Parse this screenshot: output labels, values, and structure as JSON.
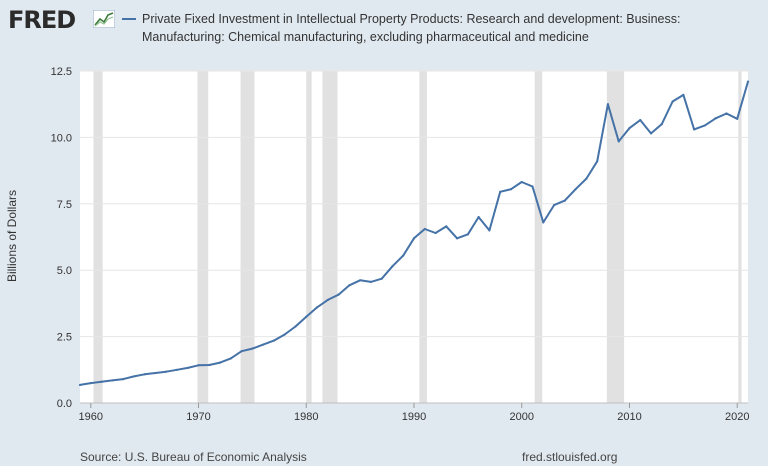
{
  "header": {
    "logo_text": "FRED",
    "legend_label": "Private Fixed Investment in Intellectual Property Products: Research and development: Business: Manufacturing: Chemical manufacturing, excluding pharmaceutical and medicine"
  },
  "footer": {
    "source": "Source: U.S. Bureau of Economic Analysis",
    "site": "fred.stlouisfed.org"
  },
  "colors": {
    "background": "#e1e9f0",
    "plot_background": "#ffffff",
    "series_line": "#4572a7",
    "recession_band": "#e1e1e1"
  },
  "chart_data": {
    "type": "line",
    "title": "",
    "xlabel": "",
    "ylabel": "Billions of Dollars",
    "xlim": [
      1959,
      2021
    ],
    "ylim": [
      0,
      12.5
    ],
    "x_ticks": [
      1960,
      1970,
      1980,
      1990,
      2000,
      2010,
      2020
    ],
    "x_tick_labels": [
      "1960",
      "1970",
      "1980",
      "1990",
      "2000",
      "2010",
      "2020"
    ],
    "y_ticks": [
      0,
      2.5,
      5,
      7.5,
      10,
      12.5
    ],
    "y_tick_labels": [
      "0.0",
      "2.5",
      "5.0",
      "7.5",
      "10.0",
      "12.5"
    ],
    "grid": "horizontal",
    "legend_placement": "top",
    "recessions": [
      [
        1960.25,
        1961.1
      ],
      [
        1969.9,
        1970.9
      ],
      [
        1973.9,
        1975.2
      ],
      [
        1980.0,
        1980.5
      ],
      [
        1981.5,
        1982.9
      ],
      [
        1990.5,
        1991.2
      ],
      [
        2001.2,
        2001.9
      ],
      [
        2007.9,
        2009.5
      ],
      [
        2020.1,
        2020.4
      ]
    ],
    "series": [
      {
        "x": [
          1959,
          1960,
          1961,
          1962,
          1963,
          1964,
          1965,
          1966,
          1967,
          1968,
          1969,
          1970,
          1971,
          1972,
          1973,
          1974,
          1975,
          1976,
          1977,
          1978,
          1979,
          1980,
          1981,
          1982,
          1983,
          1984,
          1985,
          1986,
          1987,
          1988,
          1989,
          1990,
          1991,
          1992,
          1993,
          1994,
          1995,
          1996,
          1997,
          1998,
          1999,
          2000,
          2001,
          2002,
          2003,
          2004,
          2005,
          2006,
          2007,
          2008,
          2009,
          2010,
          2011,
          2012,
          2013,
          2014,
          2015,
          2016,
          2017,
          2018,
          2019,
          2020,
          2021
        ],
        "y": [
          0.68,
          0.75,
          0.8,
          0.85,
          0.9,
          1.0,
          1.08,
          1.13,
          1.18,
          1.25,
          1.32,
          1.42,
          1.43,
          1.52,
          1.68,
          1.95,
          2.05,
          2.2,
          2.35,
          2.58,
          2.88,
          3.25,
          3.6,
          3.88,
          4.08,
          4.43,
          4.62,
          4.56,
          4.68,
          5.15,
          5.55,
          6.2,
          6.55,
          6.4,
          6.65,
          6.2,
          6.35,
          7.0,
          6.5,
          7.95,
          8.05,
          8.32,
          8.15,
          6.8,
          7.45,
          7.62,
          8.05,
          8.45,
          9.1,
          11.25,
          9.85,
          10.35,
          10.65,
          10.15,
          10.5,
          11.35,
          11.6,
          10.3,
          10.45,
          10.72,
          10.9,
          10.7,
          12.1
        ]
      }
    ]
  }
}
